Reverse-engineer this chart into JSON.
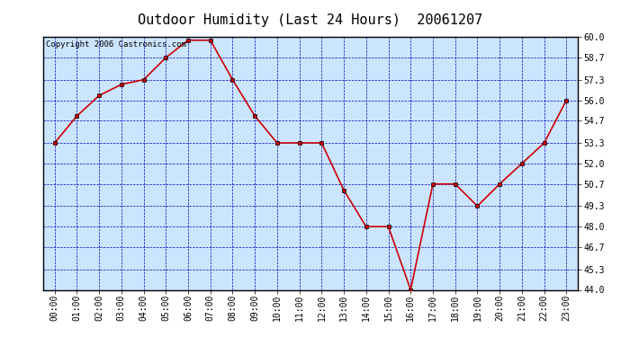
{
  "title": "Outdoor Humidity (Last 24 Hours)  20061207",
  "copyright": "Copyright 2006 Castronics.com",
  "x_labels": [
    "00:00",
    "01:00",
    "02:00",
    "03:00",
    "04:00",
    "05:00",
    "06:00",
    "07:00",
    "08:00",
    "09:00",
    "10:00",
    "11:00",
    "12:00",
    "13:00",
    "14:00",
    "15:00",
    "16:00",
    "17:00",
    "18:00",
    "19:00",
    "20:00",
    "21:00",
    "22:00",
    "23:00"
  ],
  "y_values": [
    53.3,
    55.0,
    56.3,
    57.0,
    57.3,
    58.7,
    59.8,
    59.8,
    57.3,
    55.0,
    53.3,
    53.3,
    53.3,
    50.3,
    48.0,
    48.0,
    44.0,
    50.7,
    50.7,
    49.3,
    50.7,
    52.0,
    53.3,
    56.0
  ],
  "line_color": "#cc0000",
  "marker": "s",
  "marker_size": 3,
  "marker_facecolor": "#cc0000",
  "marker_edgecolor": "#000000",
  "line_width": 1.2,
  "plot_bg_color": "#cce5ff",
  "outer_bg_color": "#ffffff",
  "grid_color": "#0000bb",
  "grid_linestyle": "--",
  "grid_linewidth": 0.5,
  "ylim": [
    44.0,
    60.0
  ],
  "yticks": [
    44.0,
    45.3,
    46.7,
    48.0,
    49.3,
    50.7,
    52.0,
    53.3,
    54.7,
    56.0,
    57.3,
    58.7,
    60.0
  ],
  "title_fontsize": 11,
  "tick_fontsize": 7,
  "copyright_fontsize": 6.5,
  "border_color": "#000000"
}
